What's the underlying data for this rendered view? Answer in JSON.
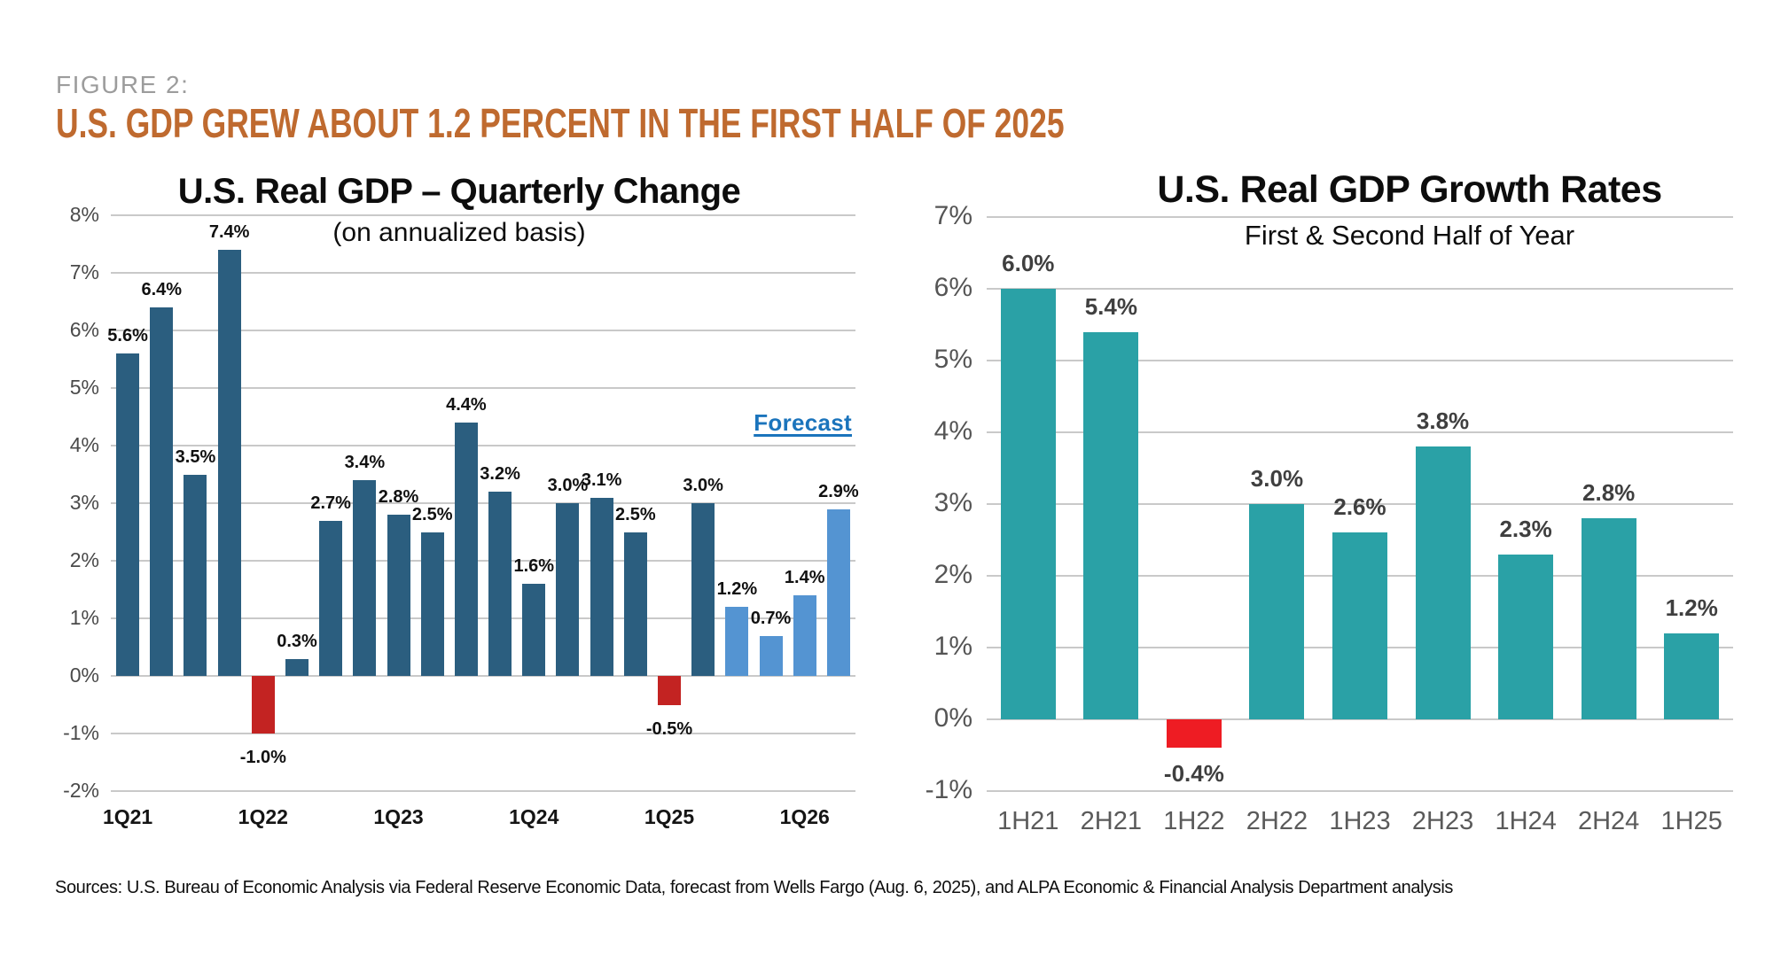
{
  "header": {
    "figure_label": "FIGURE 2:",
    "title": "U.S. GDP GREW ABOUT 1.2 PERCENT IN THE FIRST HALF OF 2025"
  },
  "footer": {
    "sources": "Sources: U.S. Bureau of Economic Analysis via Federal Reserve Economic Data, forecast from Wells Fargo (Aug. 6, 2025), and ALPA Economic & Financial Analysis Department analysis"
  },
  "colors": {
    "headline_orange": "#bf6a2f",
    "figure_label_gray": "#9c9c9c",
    "actual_bar_blue": "#2b5e7f",
    "forecast_bar_blue": "#5494d2",
    "negative_bar_red_left": "#c32322",
    "half_year_bar_teal": "#2aa1a6",
    "negative_bar_red_right": "#ee1c23",
    "forecast_label_blue": "#1b74bc",
    "gridline_gray": "#c9c9c9"
  },
  "chart_data": [
    {
      "type": "bar",
      "title": "U.S. Real GDP – Quarterly Change",
      "subtitle": "(on annualized basis)",
      "forecast_annotation": "Forecast",
      "ylim": [
        -2,
        8
      ],
      "grid": true,
      "legend_position": "none",
      "y_tick_labels": [
        "8%",
        "7%",
        "6%",
        "5%",
        "4%",
        "3%",
        "2%",
        "1%",
        "0%",
        "-1%",
        "-2%"
      ],
      "x_tick_labels": [
        "1Q21",
        "1Q22",
        "1Q23",
        "1Q24",
        "1Q25",
        "1Q26"
      ],
      "x_tick_bar_indices": [
        0,
        4,
        8,
        12,
        16,
        20
      ],
      "bars": [
        {
          "value": 5.6,
          "label": "5.6%",
          "kind": "actual"
        },
        {
          "value": 6.4,
          "label": "6.4%",
          "kind": "actual"
        },
        {
          "value": 3.5,
          "label": "3.5%",
          "kind": "actual"
        },
        {
          "value": 7.4,
          "label": "7.4%",
          "kind": "actual"
        },
        {
          "value": -1.0,
          "label": "-1.0%",
          "kind": "negative"
        },
        {
          "value": 0.3,
          "label": "0.3%",
          "kind": "actual"
        },
        {
          "value": 2.7,
          "label": "2.7%",
          "kind": "actual"
        },
        {
          "value": 3.4,
          "label": "3.4%",
          "kind": "actual"
        },
        {
          "value": 2.8,
          "label": "2.8%",
          "kind": "actual"
        },
        {
          "value": 2.5,
          "label": "2.5%",
          "kind": "actual"
        },
        {
          "value": 4.4,
          "label": "4.4%",
          "kind": "actual"
        },
        {
          "value": 3.2,
          "label": "3.2%",
          "kind": "actual"
        },
        {
          "value": 1.6,
          "label": "1.6%",
          "kind": "actual"
        },
        {
          "value": 3.0,
          "label": "3.0%",
          "kind": "actual"
        },
        {
          "value": 3.1,
          "label": "3.1%",
          "kind": "actual"
        },
        {
          "value": 2.5,
          "label": "2.5%",
          "kind": "actual"
        },
        {
          "value": -0.5,
          "label": "-0.5%",
          "kind": "negative"
        },
        {
          "value": 3.0,
          "label": "3.0%",
          "kind": "actual"
        },
        {
          "value": 1.2,
          "label": "1.2%",
          "kind": "forecast"
        },
        {
          "value": 0.7,
          "label": "0.7%",
          "kind": "forecast"
        },
        {
          "value": 1.4,
          "label": "1.4%",
          "kind": "forecast"
        },
        {
          "value": 2.9,
          "label": "2.9%",
          "kind": "forecast"
        }
      ]
    },
    {
      "type": "bar",
      "title": "U.S. Real GDP Growth Rates",
      "subtitle": "First & Second Half of Year",
      "ylim": [
        -1,
        7
      ],
      "grid": true,
      "legend_position": "none",
      "y_tick_labels": [
        "7%",
        "6%",
        "5%",
        "4%",
        "3%",
        "2%",
        "1%",
        "0%",
        "-1%"
      ],
      "categories": [
        "1H21",
        "2H21",
        "1H22",
        "2H22",
        "1H23",
        "2H23",
        "1H24",
        "2H24",
        "1H25"
      ],
      "bars": [
        {
          "value": 6.0,
          "label": "6.0%",
          "kind": "half"
        },
        {
          "value": 5.4,
          "label": "5.4%",
          "kind": "half"
        },
        {
          "value": -0.4,
          "label": "-0.4%",
          "kind": "negative"
        },
        {
          "value": 3.0,
          "label": "3.0%",
          "kind": "half"
        },
        {
          "value": 2.6,
          "label": "2.6%",
          "kind": "half"
        },
        {
          "value": 3.8,
          "label": "3.8%",
          "kind": "half"
        },
        {
          "value": 2.3,
          "label": "2.3%",
          "kind": "half"
        },
        {
          "value": 2.8,
          "label": "2.8%",
          "kind": "half"
        },
        {
          "value": 1.2,
          "label": "1.2%",
          "kind": "half"
        }
      ]
    }
  ]
}
